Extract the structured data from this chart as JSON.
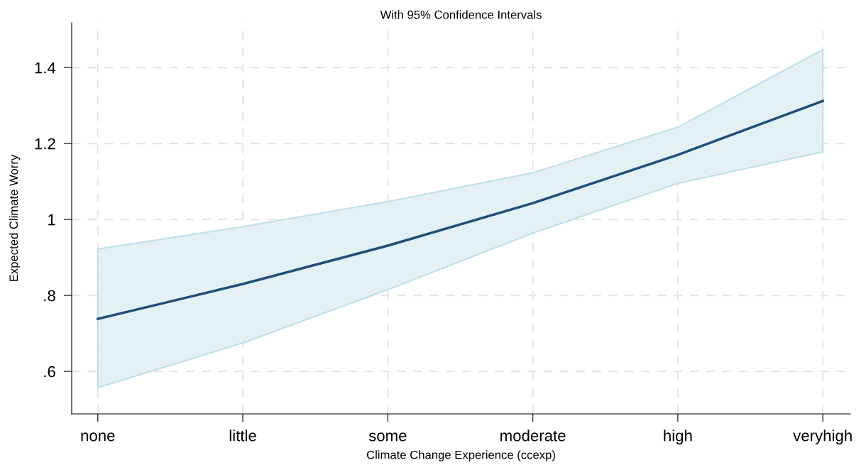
{
  "chart_data": {
    "type": "line",
    "title": "With 95% Confidence Intervals",
    "xlabel": "Climate Change Experience (ccexp)",
    "ylabel": "Expected Climate Worry",
    "categories": [
      "none",
      "little",
      "some",
      "moderate",
      "high",
      "veryhigh"
    ],
    "series": [
      {
        "color": "#1f4e79",
        "values": [
          0.738,
          0.83,
          0.931,
          1.043,
          1.17,
          1.312
        ],
        "lower": [
          0.557,
          0.675,
          0.815,
          0.964,
          1.095,
          1.178
        ],
        "upper": [
          0.922,
          0.981,
          1.047,
          1.123,
          1.243,
          1.447
        ]
      }
    ],
    "ylim": [
      0.488,
      1.518
    ],
    "yticks": [
      {
        "value": 0.6,
        "label": ".6"
      },
      {
        "value": 0.8,
        "label": ".8"
      },
      1,
      1.2,
      1.4
    ],
    "grid": true,
    "line_style": "solid",
    "marker": "none"
  }
}
